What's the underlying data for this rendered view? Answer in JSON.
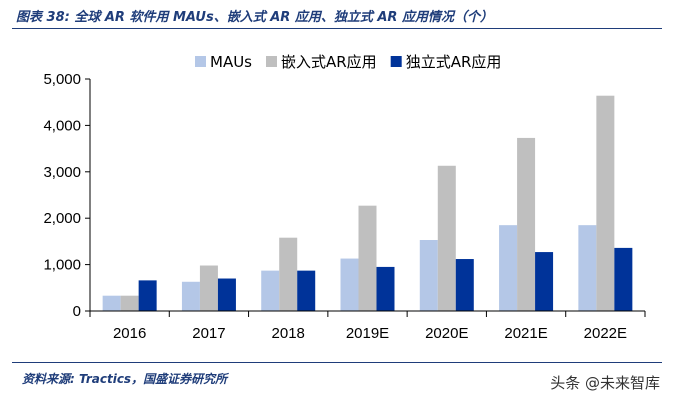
{
  "figure": {
    "title": "图表 38:  全球 AR 软件用 MAUs、嵌入式 AR 应用、独立式 AR 应用情况（个）",
    "source": "资料来源:  Tractics，国盛证券研究所",
    "watermark": "头条 @未来智库"
  },
  "chart_data": {
    "type": "bar",
    "title": "",
    "xlabel": "",
    "ylabel": "",
    "categories": [
      "2016",
      "2017",
      "2018",
      "2019E",
      "2020E",
      "2021E",
      "2022E"
    ],
    "y_ticks": [
      "0",
      "1,000",
      "2,000",
      "3,000",
      "4,000",
      "5,000"
    ],
    "ylim": [
      0,
      5000
    ],
    "grid": false,
    "legend_position": "top",
    "series": [
      {
        "name": "MAUs",
        "color": "#b4c7e7",
        "values": [
          330,
          630,
          870,
          1130,
          1530,
          1850,
          1850
        ]
      },
      {
        "name": "嵌入式AR应用",
        "color": "#bfbfbf",
        "values": [
          330,
          980,
          1580,
          2270,
          3130,
          3730,
          4640
        ]
      },
      {
        "name": "独立式AR应用",
        "color": "#003399",
        "values": [
          660,
          700,
          870,
          950,
          1120,
          1270,
          1360
        ]
      }
    ]
  }
}
